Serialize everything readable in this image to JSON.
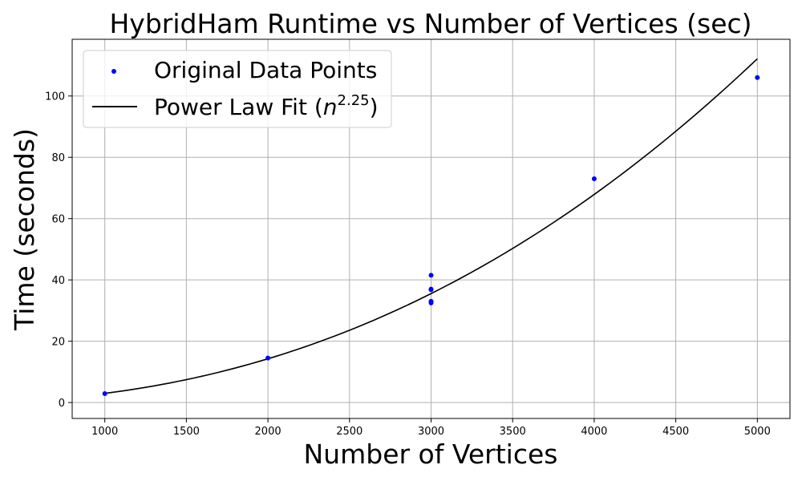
{
  "chart_data": {
    "type": "scatter",
    "title": "HybridHam Runtime vs Number of Vertices (sec)",
    "xlabel": "Number of Vertices",
    "ylabel": "Time (seconds)",
    "xlim": [
      800,
      5200
    ],
    "ylim": [
      -5.2,
      118.5
    ],
    "x_ticks": [
      1000,
      1500,
      2000,
      2500,
      3000,
      3500,
      4000,
      4500,
      5000
    ],
    "y_ticks": [
      0,
      20,
      40,
      60,
      80,
      100
    ],
    "grid": true,
    "legend_position": "top-left",
    "legend": {
      "scatter_label": "Original Data Points",
      "fit_label_prefix": "Power Law Fit (",
      "fit_label_base": "n",
      "fit_label_exponent": "2.25",
      "fit_label_suffix": ")"
    },
    "series": [
      {
        "name": "Original Data Points",
        "kind": "scatter",
        "color": "#0000ff",
        "points": [
          {
            "x": 1000,
            "y": 2.9
          },
          {
            "x": 2000,
            "y": 14.5
          },
          {
            "x": 3000,
            "y": 41.5
          },
          {
            "x": 3000,
            "y": 37.0
          },
          {
            "x": 3000,
            "y": 36.8
          },
          {
            "x": 3000,
            "y": 33.0
          },
          {
            "x": 3000,
            "y": 32.5
          },
          {
            "x": 4000,
            "y": 73.0
          },
          {
            "x": 5000,
            "y": 106.0
          }
        ]
      },
      {
        "name": "Power Law Fit (n^2.25)",
        "kind": "line",
        "color": "#000000",
        "exponent": 2.25,
        "coefficient": 3.0,
        "x_ref": 1000,
        "x_range": [
          1000,
          5000
        ]
      }
    ]
  }
}
